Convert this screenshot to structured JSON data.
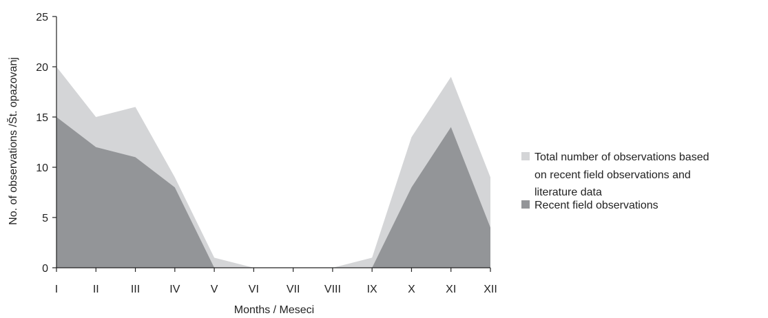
{
  "chart_data": {
    "type": "area",
    "categories": [
      "I",
      "II",
      "III",
      "IV",
      "V",
      "VI",
      "VII",
      "VIII",
      "IX",
      "X",
      "XI",
      "XII"
    ],
    "series": [
      {
        "name": "Total number of observations based on recent field observations and literature data",
        "values": [
          20,
          15,
          16,
          9,
          1,
          0,
          0,
          0,
          1,
          13,
          19,
          9
        ],
        "color": "#d4d5d7"
      },
      {
        "name": "Recent field observations",
        "values": [
          15,
          12,
          11,
          8,
          0,
          0,
          0,
          0,
          0,
          8,
          14,
          4
        ],
        "color": "#939598"
      }
    ],
    "xlabel": "Months / Meseci",
    "ylabel": "No. of observations /Št. opazovanj",
    "ylim": [
      0,
      25
    ],
    "yticks": [
      0,
      5,
      10,
      15,
      20,
      25
    ],
    "grid": false,
    "legend_position": "right"
  },
  "legend": {
    "total_lines": [
      "Total number of observations based",
      "on recent field observations and",
      "literature data"
    ],
    "recent_label": "Recent field observations"
  }
}
